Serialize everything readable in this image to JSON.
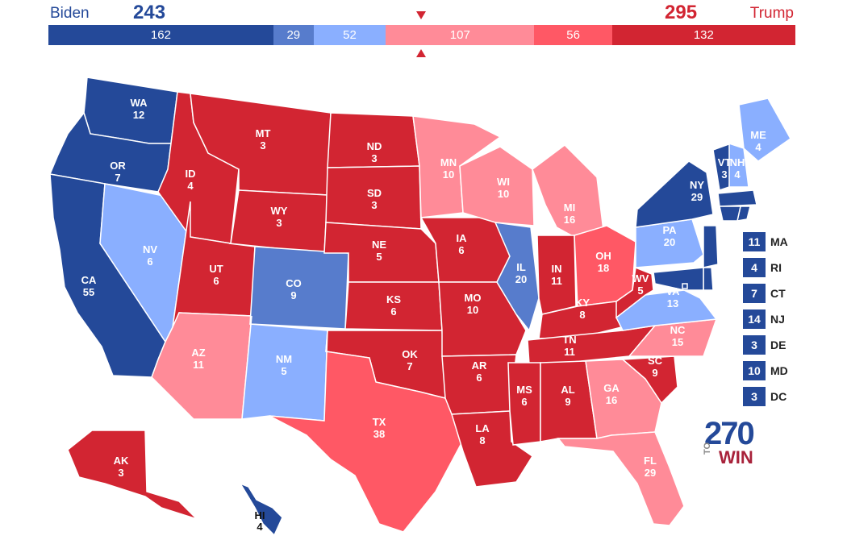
{
  "header": {
    "left_name": "Biden",
    "left_total": "243",
    "right_name": "Trump",
    "right_total": "295"
  },
  "bar_segments": [
    {
      "value": 162,
      "color": "#244999"
    },
    {
      "value": 29,
      "color": "#577ccc"
    },
    {
      "value": 52,
      "color": "#8aafff"
    },
    {
      "value": 107,
      "color": "#ff8b98"
    },
    {
      "value": 56,
      "color": "#ff5865"
    },
    {
      "value": 132,
      "color": "#d22532"
    }
  ],
  "colors": {
    "safe_d": "#244999",
    "likely_d": "#577ccc",
    "lean_d": "#8aafff",
    "lean_r": "#ff8b98",
    "likely_r": "#ff5865",
    "safe_r": "#d22532",
    "border": "#ffffff"
  },
  "states": [
    {
      "abbr": "WA",
      "ev": "12",
      "rating": "safe_d"
    },
    {
      "abbr": "OR",
      "ev": "7",
      "rating": "safe_d"
    },
    {
      "abbr": "CA",
      "ev": "55",
      "rating": "safe_d"
    },
    {
      "abbr": "NV",
      "ev": "6",
      "rating": "lean_d"
    },
    {
      "abbr": "ID",
      "ev": "4",
      "rating": "safe_r"
    },
    {
      "abbr": "MT",
      "ev": "3",
      "rating": "safe_r"
    },
    {
      "abbr": "WY",
      "ev": "3",
      "rating": "safe_r"
    },
    {
      "abbr": "UT",
      "ev": "6",
      "rating": "safe_r"
    },
    {
      "abbr": "AZ",
      "ev": "11",
      "rating": "lean_r"
    },
    {
      "abbr": "CO",
      "ev": "9",
      "rating": "likely_d"
    },
    {
      "abbr": "NM",
      "ev": "5",
      "rating": "lean_d"
    },
    {
      "abbr": "ND",
      "ev": "3",
      "rating": "safe_r"
    },
    {
      "abbr": "SD",
      "ev": "3",
      "rating": "safe_r"
    },
    {
      "abbr": "NE",
      "ev": "5",
      "rating": "safe_r"
    },
    {
      "abbr": "KS",
      "ev": "6",
      "rating": "safe_r"
    },
    {
      "abbr": "OK",
      "ev": "7",
      "rating": "safe_r"
    },
    {
      "abbr": "TX",
      "ev": "38",
      "rating": "likely_r"
    },
    {
      "abbr": "MN",
      "ev": "10",
      "rating": "lean_r"
    },
    {
      "abbr": "IA",
      "ev": "6",
      "rating": "safe_r"
    },
    {
      "abbr": "MO",
      "ev": "10",
      "rating": "safe_r"
    },
    {
      "abbr": "AR",
      "ev": "6",
      "rating": "safe_r"
    },
    {
      "abbr": "LA",
      "ev": "8",
      "rating": "safe_r"
    },
    {
      "abbr": "WI",
      "ev": "10",
      "rating": "lean_r"
    },
    {
      "abbr": "IL",
      "ev": "20",
      "rating": "likely_d"
    },
    {
      "abbr": "MI",
      "ev": "16",
      "rating": "lean_r"
    },
    {
      "abbr": "IN",
      "ev": "11",
      "rating": "safe_r"
    },
    {
      "abbr": "OH",
      "ev": "18",
      "rating": "likely_r"
    },
    {
      "abbr": "KY",
      "ev": "8",
      "rating": "safe_r"
    },
    {
      "abbr": "TN",
      "ev": "11",
      "rating": "safe_r"
    },
    {
      "abbr": "MS",
      "ev": "6",
      "rating": "safe_r"
    },
    {
      "abbr": "AL",
      "ev": "9",
      "rating": "safe_r"
    },
    {
      "abbr": "GA",
      "ev": "16",
      "rating": "lean_r"
    },
    {
      "abbr": "FL",
      "ev": "29",
      "rating": "lean_r"
    },
    {
      "abbr": "SC",
      "ev": "9",
      "rating": "safe_r"
    },
    {
      "abbr": "NC",
      "ev": "15",
      "rating": "lean_r"
    },
    {
      "abbr": "VA",
      "ev": "13",
      "rating": "lean_d"
    },
    {
      "abbr": "WV",
      "ev": "5",
      "rating": "safe_r"
    },
    {
      "abbr": "PA",
      "ev": "20",
      "rating": "lean_d"
    },
    {
      "abbr": "NY",
      "ev": "29",
      "rating": "safe_d"
    },
    {
      "abbr": "VT",
      "ev": "3",
      "rating": "safe_d"
    },
    {
      "abbr": "NH",
      "ev": "4",
      "rating": "lean_d"
    },
    {
      "abbr": "ME",
      "ev": "4",
      "rating": "lean_d"
    },
    {
      "abbr": "AK",
      "ev": "3",
      "rating": "safe_r"
    },
    {
      "abbr": "HI",
      "ev": "4",
      "rating": "safe_d"
    },
    {
      "abbr": "MA",
      "ev": "11",
      "rating": "safe_d"
    },
    {
      "abbr": "RI",
      "ev": "4",
      "rating": "safe_d"
    },
    {
      "abbr": "CT",
      "ev": "7",
      "rating": "safe_d"
    },
    {
      "abbr": "NJ",
      "ev": "14",
      "rating": "safe_d"
    },
    {
      "abbr": "DE",
      "ev": "3",
      "rating": "safe_d"
    },
    {
      "abbr": "MD",
      "ev": "10",
      "rating": "safe_d"
    },
    {
      "abbr": "DC",
      "ev": "3",
      "rating": "safe_d"
    }
  ],
  "small_states": [
    {
      "abbr": "MA",
      "ev": "11"
    },
    {
      "abbr": "RI",
      "ev": "4"
    },
    {
      "abbr": "CT",
      "ev": "7"
    },
    {
      "abbr": "NJ",
      "ev": "14"
    },
    {
      "abbr": "DE",
      "ev": "3"
    },
    {
      "abbr": "MD",
      "ev": "10"
    },
    {
      "abbr": "DC",
      "ev": "3"
    }
  ],
  "logo": {
    "number": "270",
    "to": "TO",
    "win": "WIN"
  }
}
